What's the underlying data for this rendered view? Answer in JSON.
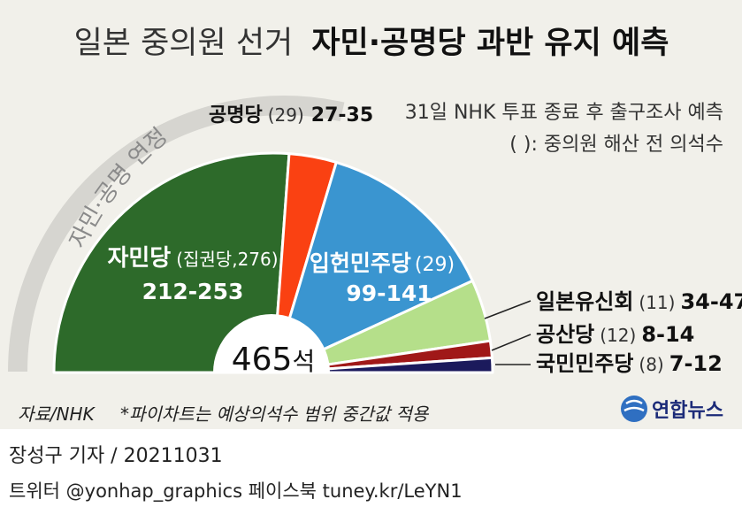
{
  "headline": {
    "regular": "일본 중의원 선거",
    "bold": "자민·공명당 과반 유지 예측"
  },
  "notes": {
    "exit_poll": "31일 NHK 투표 종료 후 출구조사 예측",
    "parenthesis": "(   ): 중의원 해산 전 의석수"
  },
  "coalition_label": "자민·공명 연정",
  "total": {
    "number": "465",
    "unit": "석"
  },
  "source": "자료/NHK",
  "footnote": "*파이차트는 예상의석수 범위 중간값 적용",
  "logo": {
    "text": "연합뉴스"
  },
  "credit": {
    "reporter": "장성구 기자 / 20211031",
    "social": "트위터 @yonhap_graphics  페이스북 tuney.kr/LeYN1"
  },
  "chart_data": {
    "type": "pie",
    "shape": "semicircle",
    "total_seats": 465,
    "note": "파이차트는 예상의석수 범위 중간값 적용",
    "series": [
      {
        "name": "자민당",
        "prior": "(집권당,276)",
        "range": "212-253",
        "low": 212,
        "high": 253,
        "value": 232.5,
        "color": "#2d6a2a"
      },
      {
        "name": "공명당",
        "prior": "(29)",
        "range": "27-35",
        "low": 27,
        "high": 35,
        "value": 31,
        "color": "#fa4112"
      },
      {
        "name": "입헌민주당",
        "prior": "(29)",
        "range": "99-141",
        "low": 99,
        "high": 141,
        "value": 120,
        "color": "#3a95d0"
      },
      {
        "name": "일본유신회",
        "prior": "(11)",
        "range": "34-47",
        "low": 34,
        "high": 47,
        "value": 40.5,
        "color": "#b5df8a"
      },
      {
        "name": "공산당",
        "prior": "(12)",
        "range": "8-14",
        "low": 8,
        "high": 14,
        "value": 11,
        "color": "#a01818"
      },
      {
        "name": "국민민주당",
        "prior": "(8)",
        "range": "7-12",
        "low": 7,
        "high": 12,
        "value": 9.5,
        "color": "#1b1a5c"
      }
    ]
  }
}
